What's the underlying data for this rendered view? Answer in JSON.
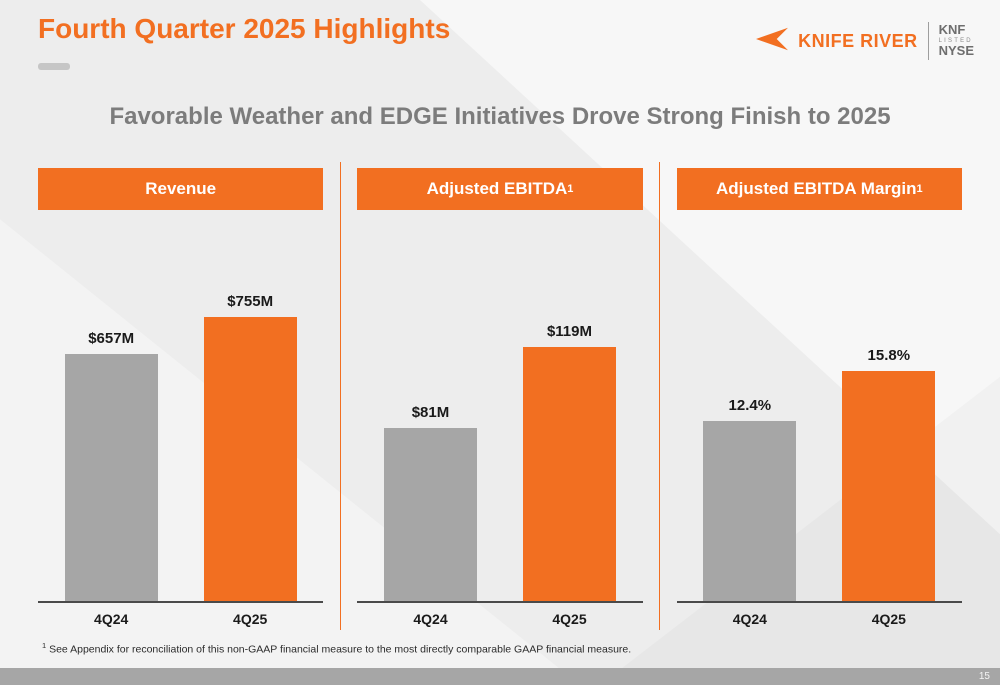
{
  "slide": {
    "title": "Fourth Quarter 2025 Highlights",
    "subtitle": "Favorable Weather and EDGE Initiatives Drove Strong Finish to 2025",
    "footnote_sup": "1",
    "footnote": "See Appendix for reconciliation of this non-GAAP financial measure to the most directly comparable GAAP financial measure.",
    "page_number": "15"
  },
  "logo": {
    "wordmark": "KNIFE RIVER",
    "ticker": "KNF",
    "listed": "LISTED",
    "exchange": "NYSE"
  },
  "colors": {
    "accent_orange": "#F26F21",
    "bar_gray": "#A6A6A6",
    "subtitle_gray": "#7C7C7C"
  },
  "chart_data": [
    {
      "type": "bar",
      "title": "Revenue",
      "title_sup": "",
      "categories": [
        "4Q24",
        "4Q25"
      ],
      "values": [
        657,
        755
      ],
      "labels": [
        "$657M",
        "$755M"
      ],
      "ylim": [
        0,
        850
      ],
      "series_colors": [
        "#A6A6A6",
        "#F26F21"
      ],
      "grid": false,
      "legend": false
    },
    {
      "type": "bar",
      "title": "Adjusted EBITDA",
      "title_sup": "1",
      "categories": [
        "4Q24",
        "4Q25"
      ],
      "values": [
        81,
        119
      ],
      "labels": [
        "$81M",
        "$119M"
      ],
      "ylim": [
        0,
        150
      ],
      "series_colors": [
        "#A6A6A6",
        "#F26F21"
      ],
      "grid": false,
      "legend": false
    },
    {
      "type": "bar",
      "title": "Adjusted EBITDA Margin",
      "title_sup": "1",
      "categories": [
        "4Q24",
        "4Q25"
      ],
      "values": [
        12.4,
        15.8
      ],
      "labels": [
        "12.4%",
        "15.8%"
      ],
      "ylim": [
        0,
        22
      ],
      "series_colors": [
        "#A6A6A6",
        "#F26F21"
      ],
      "grid": false,
      "legend": false
    }
  ]
}
